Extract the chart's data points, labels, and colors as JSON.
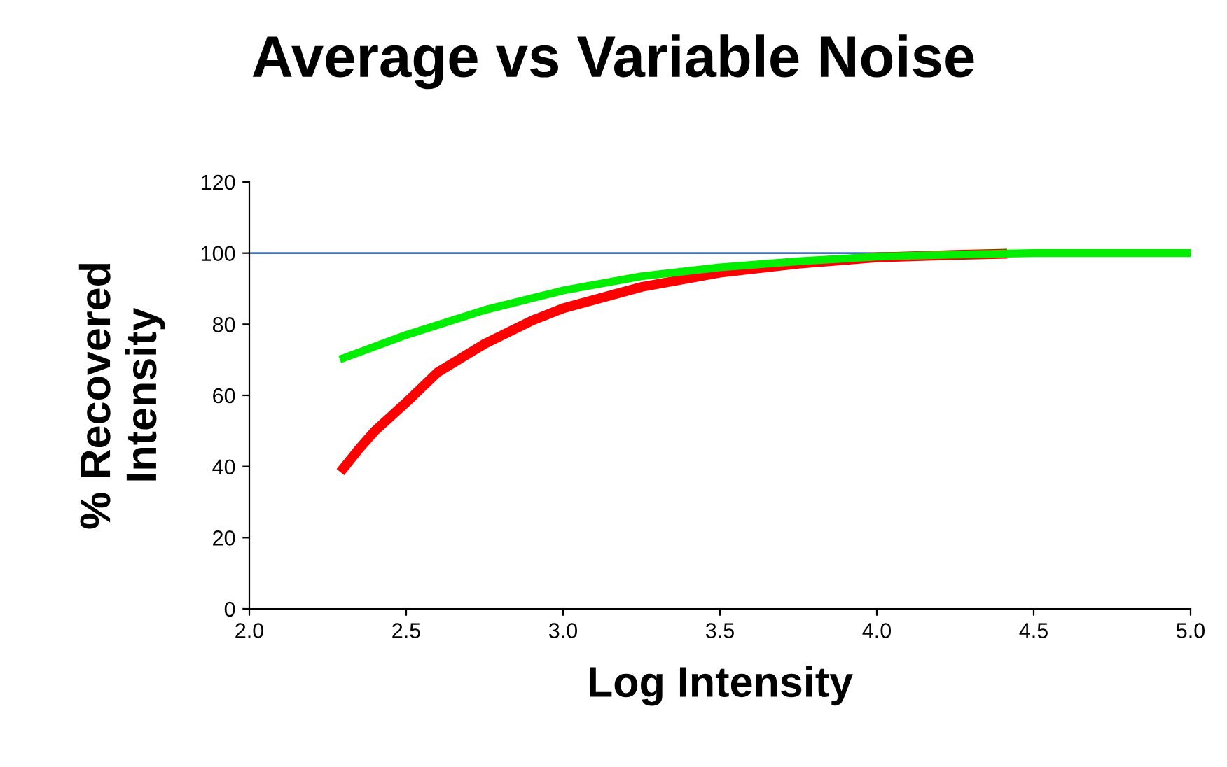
{
  "chart_data": {
    "type": "line",
    "title": "Average vs Variable Noise",
    "xlabel": "Log Intensity",
    "ylabel": "% Recovered\nIntensity",
    "series": [
      {
        "color": "#ff0000",
        "x": [
          2.3,
          2.35,
          2.4,
          2.5,
          2.6,
          2.75,
          2.9,
          3.0,
          3.25,
          3.5,
          3.75,
          4.0,
          4.25,
          4.4
        ],
        "values": [
          39.5,
          45,
          50,
          58,
          66.5,
          74.5,
          81,
          84.5,
          90.5,
          94.5,
          97,
          98.8,
          99.5,
          99.8
        ]
      },
      {
        "color": "#00ee00",
        "x": [
          2.3,
          2.5,
          2.75,
          3.0,
          3.25,
          3.5,
          3.75,
          4.0,
          4.25,
          4.5,
          5.0
        ],
        "values": [
          70.5,
          77,
          84,
          89.5,
          93.5,
          96,
          97.7,
          99,
          99.6,
          100,
          100
        ]
      }
    ],
    "ref_lines": [
      {
        "axis": "y",
        "value": 100,
        "color": "#4472c4"
      }
    ],
    "xlim": [
      2.0,
      5.0
    ],
    "xticks": [
      {
        "value": 2.0,
        "label": "2.0"
      },
      {
        "value": 2.5,
        "label": "2.5"
      },
      {
        "value": 3.0,
        "label": "3.0"
      },
      {
        "value": 3.5,
        "label": "3.5"
      },
      {
        "value": 4.0,
        "label": "4.0"
      },
      {
        "value": 4.5,
        "label": "4.5"
      },
      {
        "value": 5.0,
        "label": "5.0"
      }
    ],
    "ylim": [
      0,
      120
    ],
    "yticks": [
      0,
      20,
      40,
      60,
      80,
      100,
      120
    ],
    "grid": false,
    "marker": "none",
    "line_style": "solid"
  }
}
